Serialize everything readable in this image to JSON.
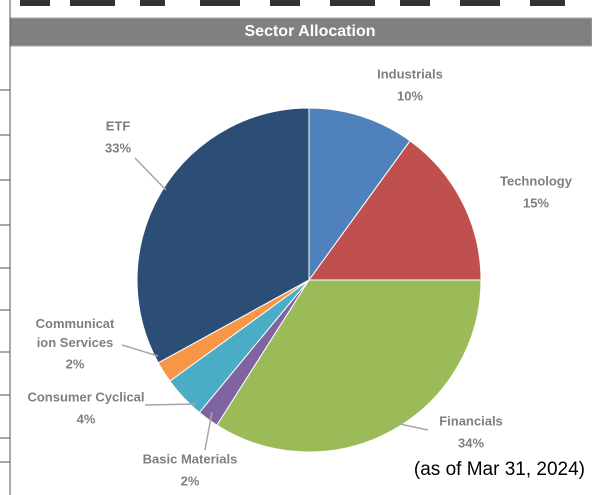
{
  "chart_data": {
    "type": "pie",
    "title": "Sector Allocation",
    "categories": [
      "Industrials",
      "Technology",
      "Financials",
      "Basic Materials",
      "Consumer Cyclical",
      "Communication Services",
      "ETF"
    ],
    "values": [
      10,
      15,
      34,
      2,
      4,
      2,
      33
    ],
    "value_labels": [
      "10%",
      "15%",
      "34%",
      "2%",
      "4%",
      "2%",
      "33%"
    ],
    "colors": [
      "#4f81bd",
      "#c0504d",
      "#9bbb59",
      "#8064a2",
      "#4bacc6",
      "#f79646",
      "#2c4d75"
    ],
    "annotation": "(as of Mar 31, 2024)"
  }
}
